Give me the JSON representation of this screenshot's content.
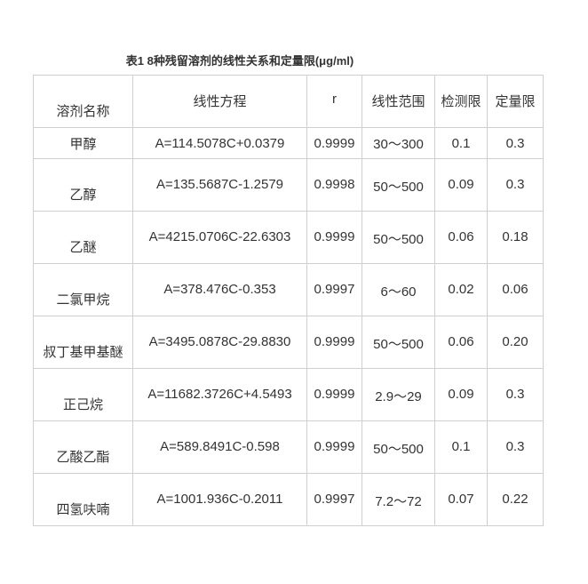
{
  "title": "表1 8种残留溶剂的线性关系和定量限(μg/ml)",
  "headers": [
    "溶剂名称",
    "线性方程",
    "r",
    "线性范围",
    "检测限",
    "定量限"
  ],
  "rows": [
    [
      "甲醇",
      "A=114.5078C+0.0379",
      "0.9999",
      "30～300",
      "0.1",
      "0.3"
    ],
    [
      "乙醇",
      "A=135.5687C-1.2579",
      "0.9998",
      "50～500",
      "0.09",
      "0.3"
    ],
    [
      "乙醚",
      "A=4215.0706C-22.6303",
      "0.9999",
      "50～500",
      "0.06",
      "0.18"
    ],
    [
      "二氯甲烷",
      "A=378.476C-0.353",
      "0.9997",
      "6～60",
      "0.02",
      "0.06"
    ],
    [
      "叔丁基甲基醚",
      "A=3495.0878C-29.8830",
      "0.9999",
      "50～500",
      "0.06",
      "0.20"
    ],
    [
      "正己烷",
      "A=11682.3726C+4.5493",
      "0.9999",
      "2.9～29",
      "0.09",
      "0.3"
    ],
    [
      "乙酸乙酯",
      "A=589.8491C-0.598",
      "0.9999",
      "50～500",
      "0.1",
      "0.3"
    ],
    [
      "四氢呋喃",
      "A=1001.936C-0.2011",
      "0.9997",
      "7.2～72",
      "0.07",
      "0.22"
    ]
  ]
}
